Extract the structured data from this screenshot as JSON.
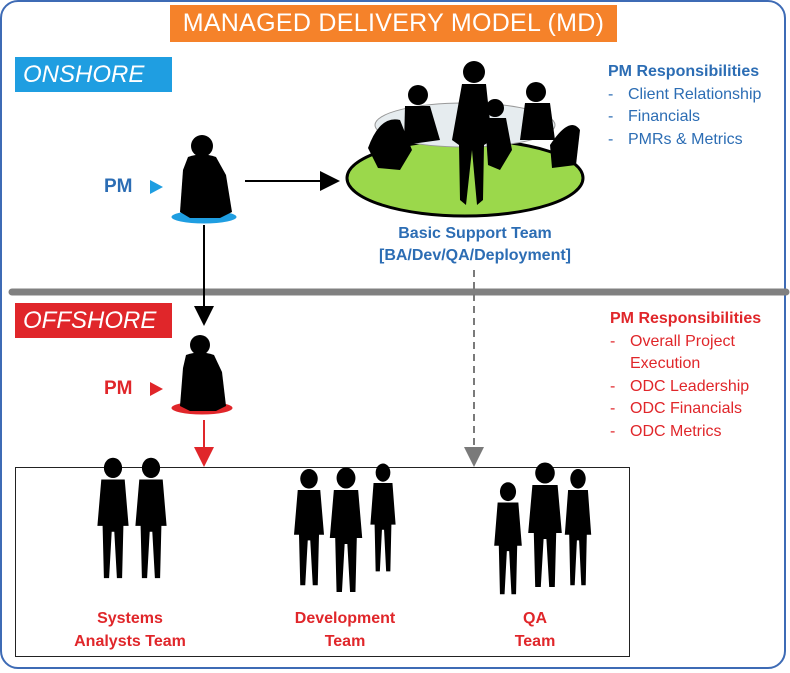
{
  "title": "MANAGED DELIVERY MODEL (MD)",
  "regions": {
    "onshore": "ONSHORE",
    "offshore": "OFFSHORE"
  },
  "pm_label": "PM",
  "onshore_responsibilities": {
    "heading": "PM Responsibilities",
    "items": [
      "Client Relationship",
      "Financials",
      "PMRs & Metrics"
    ]
  },
  "offshore_responsibilities": {
    "heading": "PM Responsibilities",
    "items": [
      "Overall Project Execution",
      "ODC Leadership",
      "ODC Financials",
      "ODC Metrics"
    ]
  },
  "basic_support_team": {
    "line1": "Basic Support Team",
    "line2": "[BA/Dev/QA/Deployment]"
  },
  "teams": [
    {
      "line1": "Systems",
      "line2": "Analysts Team"
    },
    {
      "line1": "Development",
      "line2": "Team"
    },
    {
      "line1": "QA",
      "line2": "Team"
    }
  ],
  "colors": {
    "title_bg": "#f5822a",
    "onshore": "#1f9ee1",
    "offshore": "#e0262a",
    "onshore_text": "#2c6db4",
    "table": "#9bd84b",
    "divider": "#808080"
  },
  "icons": [
    "person-silhouette-icon",
    "meeting-table-icon",
    "arrow-icon"
  ]
}
